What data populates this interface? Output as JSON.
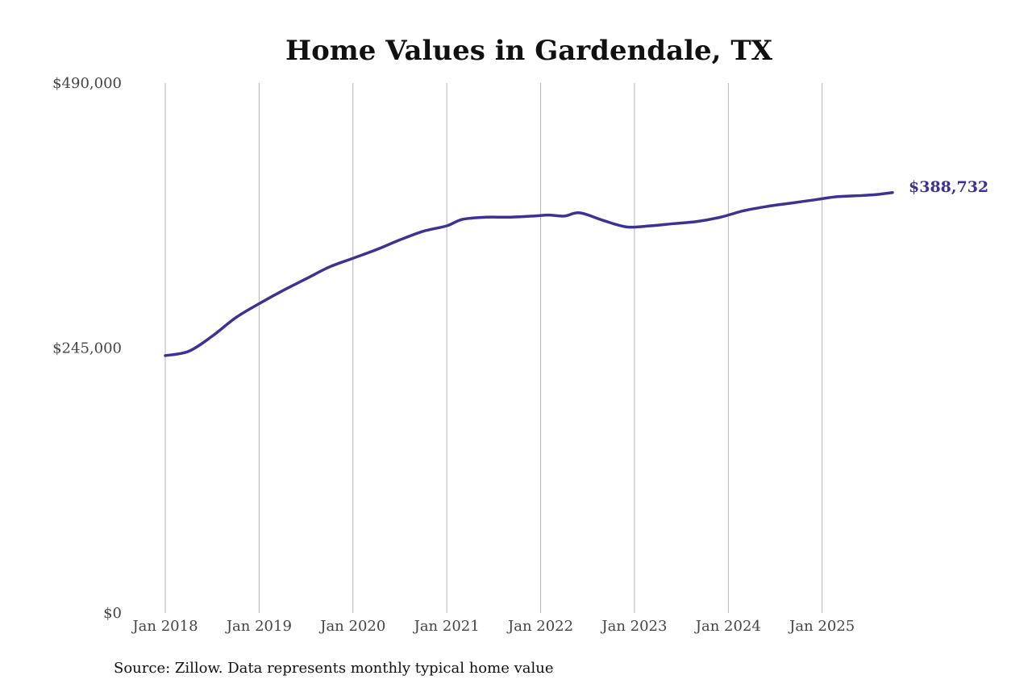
{
  "chart_data": {
    "type": "line",
    "title": "Home Values in Gardendale, TX",
    "source": "Source: Zillow. Data represents monthly typical home value",
    "xlabel": "",
    "ylabel": "",
    "ylim": [
      0,
      490000
    ],
    "y_ticks": [
      0,
      245000,
      490000
    ],
    "y_tick_labels": [
      "$0",
      "$245,000",
      "$490,000"
    ],
    "x_ticks": [
      "2018-01",
      "2019-01",
      "2020-01",
      "2021-01",
      "2022-01",
      "2023-01",
      "2024-01",
      "2025-01"
    ],
    "x_tick_labels": [
      "Jan 2018",
      "Jan 2019",
      "Jan 2020",
      "Jan 2021",
      "Jan 2022",
      "Jan 2023",
      "Jan 2024",
      "Jan 2025"
    ],
    "xlim": [
      "2018-01",
      "2025-10"
    ],
    "grid": "vertical",
    "line_color": "#3b3294",
    "end_label": "$388,732",
    "series": [
      {
        "x": [
          "2018-01",
          "2018-04",
          "2018-07",
          "2018-10",
          "2019-01",
          "2019-04",
          "2019-07",
          "2019-10",
          "2020-01",
          "2020-04",
          "2020-07",
          "2020-10",
          "2021-01",
          "2021-03",
          "2021-06",
          "2021-09",
          "2021-12",
          "2022-02",
          "2022-04",
          "2022-06",
          "2022-09",
          "2022-12",
          "2023-03",
          "2023-06",
          "2023-09",
          "2023-12",
          "2024-03",
          "2024-06",
          "2024-09",
          "2024-12",
          "2025-03",
          "2025-06",
          "2025-08",
          "2025-10"
        ],
        "values": [
          238000,
          242000,
          256000,
          273000,
          286000,
          298000,
          309000,
          320000,
          328000,
          336000,
          345000,
          353000,
          358000,
          364000,
          366000,
          366000,
          367000,
          368000,
          367000,
          370000,
          363000,
          357000,
          358000,
          360000,
          362000,
          366000,
          372000,
          376000,
          379000,
          382000,
          385000,
          386000,
          387000,
          388732
        ]
      }
    ]
  }
}
